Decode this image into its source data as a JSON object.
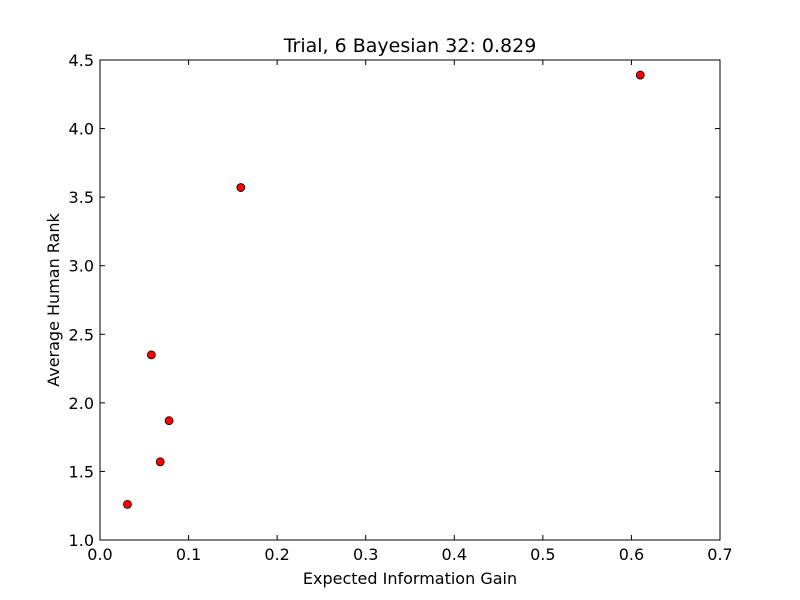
{
  "chart_data": {
    "type": "scatter",
    "title": "Trial, 6 Bayesian 32: 0.829",
    "xlabel": "Expected Information Gain",
    "ylabel": "Average Human Rank",
    "xlim": [
      0.0,
      0.7
    ],
    "ylim": [
      1.0,
      4.5
    ],
    "x_ticks": [
      "0.0",
      "0.1",
      "0.2",
      "0.3",
      "0.4",
      "0.5",
      "0.6",
      "0.7"
    ],
    "y_ticks": [
      "1.0",
      "1.5",
      "2.0",
      "2.5",
      "3.0",
      "3.5",
      "4.0",
      "4.5"
    ],
    "grid": false,
    "legend": "none",
    "marker_color": "#ff0000",
    "marker_edge_color": "#000000",
    "points": [
      {
        "x": 0.031,
        "y": 1.26
      },
      {
        "x": 0.058,
        "y": 2.35
      },
      {
        "x": 0.068,
        "y": 1.57
      },
      {
        "x": 0.078,
        "y": 1.87
      },
      {
        "x": 0.159,
        "y": 3.57
      },
      {
        "x": 0.61,
        "y": 4.39
      }
    ]
  }
}
